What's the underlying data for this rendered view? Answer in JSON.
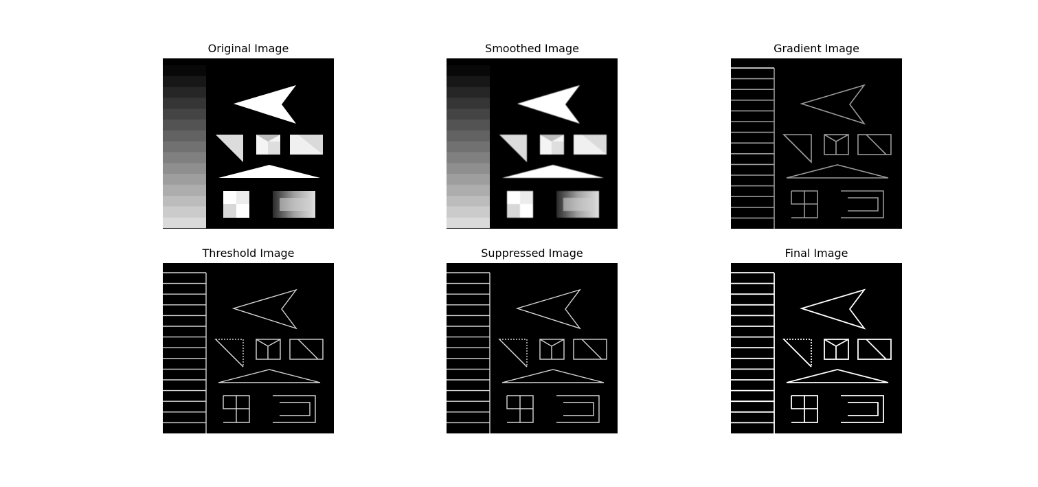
{
  "figure": {
    "panels": [
      {
        "key": "original",
        "title": "Original Image",
        "kind": "original"
      },
      {
        "key": "smoothed",
        "title": "Smoothed Image",
        "kind": "smoothed"
      },
      {
        "key": "gradient",
        "title": "Gradient Image",
        "kind": "gradient"
      },
      {
        "key": "threshold",
        "title": "Threshold Image",
        "kind": "edges"
      },
      {
        "key": "suppressed",
        "title": "Suppressed Image",
        "kind": "edges"
      },
      {
        "key": "final",
        "title": "Final Image",
        "kind": "final"
      }
    ],
    "colors": {
      "background": "#000000",
      "foreground": "#ffffff",
      "gradient_edge": "#9a9a9a",
      "thin_edge": "#d6d6d6",
      "bright_edge": "#ffffff"
    }
  }
}
